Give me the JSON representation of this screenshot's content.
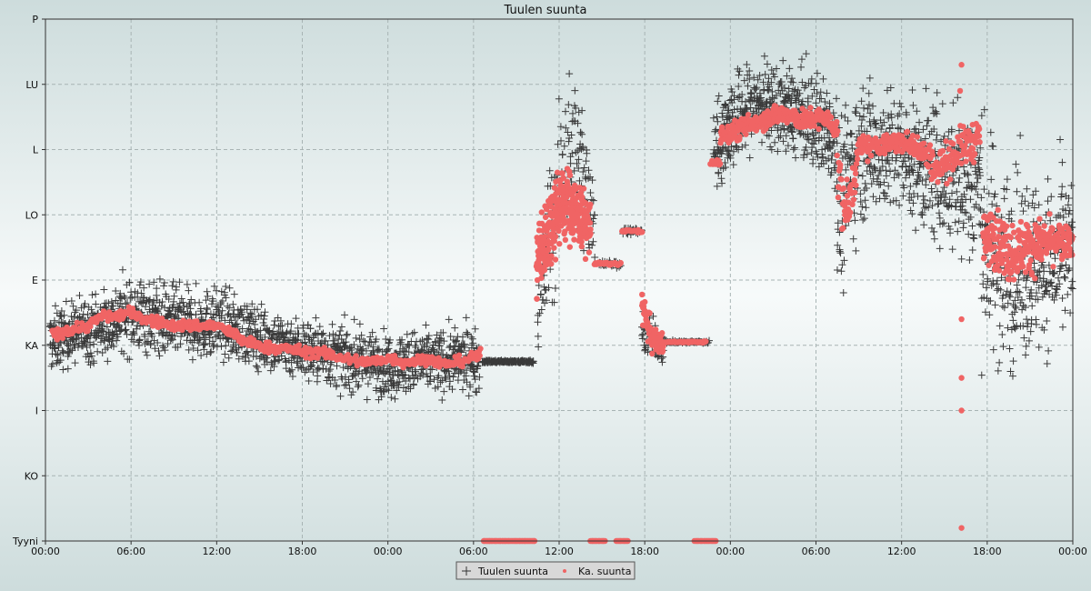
{
  "chart_data": {
    "type": "scatter",
    "title": "Tuulen suunta",
    "xlabel": "",
    "ylabel": "",
    "x_unit": "hours",
    "xlim": [
      0,
      72
    ],
    "x_tick_values": [
      0,
      6,
      12,
      18,
      24,
      30,
      36,
      42,
      48,
      54,
      60,
      66,
      72
    ],
    "x_tick_labels": [
      "00:00",
      "06:00",
      "12:00",
      "18:00",
      "00:00",
      "06:00",
      "12:00",
      "18:00",
      "00:00",
      "06:00",
      "12:00",
      "18:00",
      "00:00"
    ],
    "y_categories": [
      "Tyyni",
      "KO",
      "I",
      "KA",
      "E",
      "LO",
      "L",
      "LU",
      "P"
    ],
    "grid": true,
    "legend_position": "bottom-center",
    "series": [
      {
        "name": "Tuulen suunta",
        "marker": "+",
        "color": "#3a3a3a",
        "segments": [
          {
            "x": [
              0.3,
              2,
              4,
              6,
              8,
              10,
              12,
              14,
              16,
              18,
              20,
              22,
              24,
              26,
              28,
              30.4
            ],
            "center": [
              3.05,
              3.2,
              3.3,
              3.5,
              3.4,
              3.3,
              3.35,
              3.2,
              3.05,
              2.95,
              2.85,
              2.75,
              2.7,
              2.75,
              2.75,
              2.8
            ],
            "spread": [
              0.45,
              0.45,
              0.5,
              0.55,
              0.55,
              0.5,
              0.5,
              0.45,
              0.45,
              0.45,
              0.45,
              0.45,
              0.45,
              0.45,
              0.45,
              0.45
            ],
            "count": 1700
          },
          {
            "x": [
              30.6,
              34.2
            ],
            "center": [
              2.75,
              2.75
            ],
            "spread": [
              0.02,
              0.02
            ],
            "count": 140
          },
          {
            "x": [
              34.5,
              35.5,
              36.5,
              37.5,
              38.5
            ],
            "center": [
              3.5,
              4.8,
              6.0,
              5.8,
              5.0
            ],
            "spread": [
              1.1,
              1.2,
              1.2,
              1.1,
              0.8
            ],
            "count": 170
          },
          {
            "x": [
              38.8,
              40.3
            ],
            "center": [
              4.25,
              4.25
            ],
            "spread": [
              0.05,
              0.05
            ],
            "count": 30
          },
          {
            "x": [
              40.5,
              41.8
            ],
            "center": [
              4.75,
              4.75
            ],
            "spread": [
              0.05,
              0.05
            ],
            "count": 30
          },
          {
            "x": [
              41.8,
              43.3
            ],
            "center": [
              3.2,
              3.0
            ],
            "spread": [
              0.3,
              0.25
            ],
            "count": 70
          },
          {
            "x": [
              43.3,
              46.5
            ],
            "center": [
              3.05,
              3.05
            ],
            "spread": [
              0.02,
              0.02
            ],
            "count": 60
          },
          {
            "x": [
              46.8,
              48,
              50,
              52,
              54,
              55.5
            ],
            "center": [
              6.0,
              6.4,
              6.7,
              6.6,
              6.4,
              6.2
            ],
            "spread": [
              0.6,
              0.7,
              0.6,
              0.6,
              0.7,
              0.7
            ],
            "count": 560
          },
          {
            "x": [
              55.5,
              57,
              59,
              61,
              63,
              65.5
            ],
            "center": [
              5.0,
              6.0,
              6.0,
              5.8,
              5.6,
              5.5
            ],
            "spread": [
              1.4,
              1.0,
              0.9,
              0.9,
              1.1,
              1.3
            ],
            "count": 520
          },
          {
            "x": [
              65.5,
              67,
              69,
              71,
              72.2
            ],
            "center": [
              4.8,
              4.2,
              4.2,
              4.3,
              4.4
            ],
            "spread": [
              1.6,
              1.5,
              1.3,
              1.2,
              1.2
            ],
            "count": 360
          }
        ]
      },
      {
        "name": "Ka. suunta",
        "marker": "o",
        "color": "#f06464",
        "segments": [
          {
            "x": [
              0.5,
              1,
              2,
              3,
              4,
              5,
              6,
              7,
              8,
              9,
              10,
              11,
              12,
              13,
              14,
              15,
              16,
              17,
              18,
              19,
              20,
              21,
              22,
              23,
              24,
              25,
              26,
              27,
              28,
              29,
              30.5
            ],
            "center": [
              3.15,
              3.2,
              3.25,
              3.3,
              3.45,
              3.45,
              3.5,
              3.4,
              3.35,
              3.3,
              3.3,
              3.3,
              3.3,
              3.2,
              3.05,
              3.0,
              2.95,
              2.95,
              2.9,
              2.9,
              2.85,
              2.8,
              2.75,
              2.75,
              2.8,
              2.75,
              2.75,
              2.8,
              2.7,
              2.75,
              2.85
            ],
            "spread": [
              0.08,
              0.08,
              0.08,
              0.08,
              0.08,
              0.08,
              0.08,
              0.08,
              0.08,
              0.08,
              0.08,
              0.08,
              0.08,
              0.08,
              0.08,
              0.08,
              0.08,
              0.08,
              0.08,
              0.08,
              0.08,
              0.08,
              0.08,
              0.08,
              0.08,
              0.08,
              0.08,
              0.08,
              0.08,
              0.08,
              0.08
            ],
            "count": 560
          },
          {
            "x": [
              30.7,
              34.3
            ],
            "center": [
              0.0,
              0.0
            ],
            "spread": [
              0.0,
              0.0
            ],
            "count": 60
          },
          {
            "x": [
              34.4,
              35,
              36,
              37,
              38.2
            ],
            "center": [
              4.2,
              4.6,
              5.2,
              5.1,
              4.8
            ],
            "spread": [
              0.55,
              0.6,
              0.6,
              0.5,
              0.4
            ],
            "count": 320
          },
          {
            "x": [
              38.2,
              39.2
            ],
            "center": [
              0.0,
              0.0
            ],
            "spread": [
              0.0,
              0.0
            ],
            "count": 16
          },
          {
            "x": [
              38.5,
              40.3
            ],
            "center": [
              4.25,
              4.25
            ],
            "spread": [
              0.02,
              0.02
            ],
            "count": 30
          },
          {
            "x": [
              40.0,
              40.8
            ],
            "center": [
              0.0,
              0.0
            ],
            "spread": [
              0.0,
              0.0
            ],
            "count": 12
          },
          {
            "x": [
              40.4,
              41.8
            ],
            "center": [
              4.75,
              4.75
            ],
            "spread": [
              0.02,
              0.02
            ],
            "count": 24
          },
          {
            "x": [
              41.8,
              42.5,
              43.3
            ],
            "center": [
              3.6,
              3.1,
              3.0
            ],
            "spread": [
              0.25,
              0.2,
              0.15
            ],
            "count": 80
          },
          {
            "x": [
              43.3,
              46.3
            ],
            "center": [
              3.05,
              3.05
            ],
            "spread": [
              0.01,
              0.01
            ],
            "count": 50
          },
          {
            "x": [
              45.5,
              47.0
            ],
            "center": [
              0.0,
              0.0
            ],
            "spread": [
              0.0,
              0.0
            ],
            "count": 22
          },
          {
            "x": [
              46.6,
              47.3
            ],
            "center": [
              5.8,
              5.8
            ],
            "spread": [
              0.05,
              0.05
            ],
            "count": 14
          },
          {
            "x": [
              47.3,
              48.5,
              50,
              51.5,
              53,
              54.5,
              55.5
            ],
            "center": [
              6.2,
              6.3,
              6.45,
              6.55,
              6.45,
              6.5,
              6.3
            ],
            "spread": [
              0.15,
              0.15,
              0.15,
              0.15,
              0.15,
              0.15,
              0.15
            ],
            "count": 300
          },
          {
            "x": [
              55.5,
              56.2,
              57,
              58,
              59.5,
              61,
              62.5,
              64,
              65.5
            ],
            "center": [
              5.6,
              5.0,
              6.0,
              6.05,
              6.1,
              6.1,
              5.7,
              6.0,
              6.2
            ],
            "spread": [
              0.4,
              0.5,
              0.2,
              0.15,
              0.15,
              0.2,
              0.25,
              0.3,
              0.3
            ],
            "count": 330
          },
          {
            "x": [
              65.7,
              66.5,
              67.5,
              68.5,
              69.5,
              70.5,
              71.5,
              72.2
            ],
            "center": [
              4.6,
              4.7,
              4.4,
              4.5,
              4.55,
              4.6,
              4.55,
              4.6
            ],
            "spread": [
              0.35,
              0.45,
              0.45,
              0.4,
              0.35,
              0.3,
              0.25,
              0.2
            ],
            "count": 300
          }
        ],
        "outliers": [
          {
            "x": 64.2,
            "y": 7.3
          },
          {
            "x": 64.2,
            "y": 0.2
          },
          {
            "x": 64.2,
            "y": 2.0
          },
          {
            "x": 64.2,
            "y": 2.5
          },
          {
            "x": 64.2,
            "y": 3.4
          },
          {
            "x": 64.1,
            "y": 6.9
          }
        ]
      }
    ]
  }
}
